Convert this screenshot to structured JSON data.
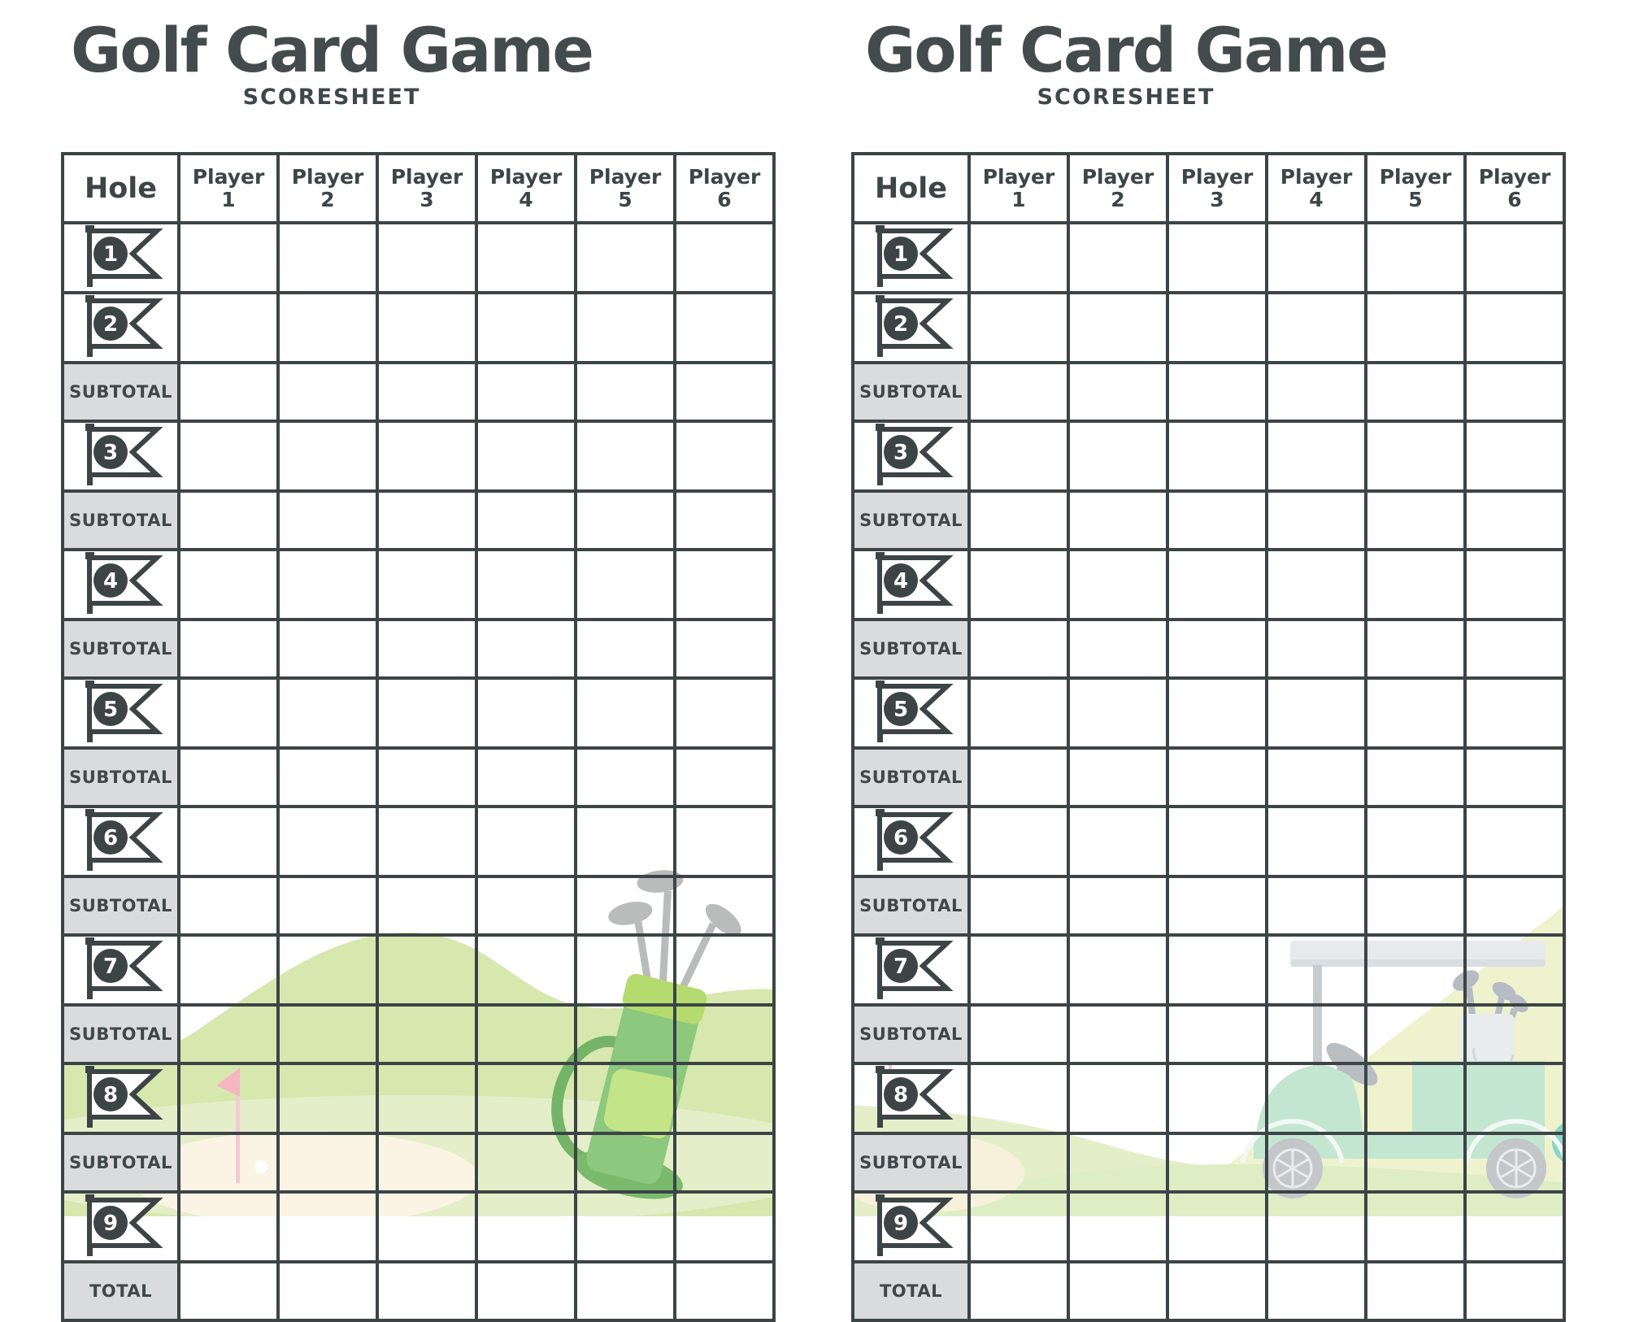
{
  "sheets": [
    {
      "title": "Golf Card Game",
      "subtitle": "SCORESHEET",
      "hole_header": "Hole",
      "player_columns": [
        {
          "label": "Player",
          "num": "1"
        },
        {
          "label": "Player",
          "num": "2"
        },
        {
          "label": "Player",
          "num": "3"
        },
        {
          "label": "Player",
          "num": "4"
        },
        {
          "label": "Player",
          "num": "5"
        },
        {
          "label": "Player",
          "num": "6"
        }
      ],
      "rows": [
        {
          "type": "hole",
          "hole": "1"
        },
        {
          "type": "hole",
          "hole": "2"
        },
        {
          "type": "subtotal",
          "label": "SUBTOTAL"
        },
        {
          "type": "hole",
          "hole": "3"
        },
        {
          "type": "subtotal",
          "label": "SUBTOTAL"
        },
        {
          "type": "hole",
          "hole": "4"
        },
        {
          "type": "subtotal",
          "label": "SUBTOTAL"
        },
        {
          "type": "hole",
          "hole": "5"
        },
        {
          "type": "subtotal",
          "label": "SUBTOTAL"
        },
        {
          "type": "hole",
          "hole": "6"
        },
        {
          "type": "subtotal",
          "label": "SUBTOTAL"
        },
        {
          "type": "hole",
          "hole": "7"
        },
        {
          "type": "subtotal",
          "label": "SUBTOTAL"
        },
        {
          "type": "hole",
          "hole": "8"
        },
        {
          "type": "subtotal",
          "label": "SUBTOTAL"
        },
        {
          "type": "hole",
          "hole": "9"
        },
        {
          "type": "total",
          "label": "TOTAL"
        }
      ],
      "score_cell_value": ""
    },
    {
      "title": "Golf Card Game",
      "subtitle": "SCORESHEET",
      "hole_header": "Hole",
      "player_columns": [
        {
          "label": "Player",
          "num": "1"
        },
        {
          "label": "Player",
          "num": "2"
        },
        {
          "label": "Player",
          "num": "3"
        },
        {
          "label": "Player",
          "num": "4"
        },
        {
          "label": "Player",
          "num": "5"
        },
        {
          "label": "Player",
          "num": "6"
        }
      ],
      "rows": [
        {
          "type": "hole",
          "hole": "1"
        },
        {
          "type": "hole",
          "hole": "2"
        },
        {
          "type": "subtotal",
          "label": "SUBTOTAL"
        },
        {
          "type": "hole",
          "hole": "3"
        },
        {
          "type": "subtotal",
          "label": "SUBTOTAL"
        },
        {
          "type": "hole",
          "hole": "4"
        },
        {
          "type": "subtotal",
          "label": "SUBTOTAL"
        },
        {
          "type": "hole",
          "hole": "5"
        },
        {
          "type": "subtotal",
          "label": "SUBTOTAL"
        },
        {
          "type": "hole",
          "hole": "6"
        },
        {
          "type": "subtotal",
          "label": "SUBTOTAL"
        },
        {
          "type": "hole",
          "hole": "7"
        },
        {
          "type": "subtotal",
          "label": "SUBTOTAL"
        },
        {
          "type": "hole",
          "hole": "8"
        },
        {
          "type": "subtotal",
          "label": "SUBTOTAL"
        },
        {
          "type": "hole",
          "hole": "9"
        },
        {
          "type": "total",
          "label": "TOTAL"
        }
      ],
      "score_cell_value": ""
    }
  ],
  "icons": {
    "hole_flag": "numbered-swallowtail-pennant-flag",
    "left_decoration": "golf-bag-with-clubs-on-green-hills",
    "right_decoration": "golf-cart-with-clubs-on-green-hills"
  },
  "colors": {
    "ink": "#3c4446",
    "title": "#434b4d",
    "subtotal_bg": "#d9dbdc",
    "hill_green": "#d6e8ad",
    "hill_light": "#e6f0cf",
    "hill_yellow": "#eff3cd",
    "hill_pale": "#e4efca",
    "putting_cream": "#fbf4e4",
    "pin_pink": "#f5b6c2",
    "bag_green": "#8cc87e",
    "bag_cap": "#b5db6e",
    "bag_pocket": "#c4e488",
    "cart_mint": "#c2e6cf",
    "cart_gray": "#c3c7ca",
    "club_gray": "#b9bcbb"
  }
}
